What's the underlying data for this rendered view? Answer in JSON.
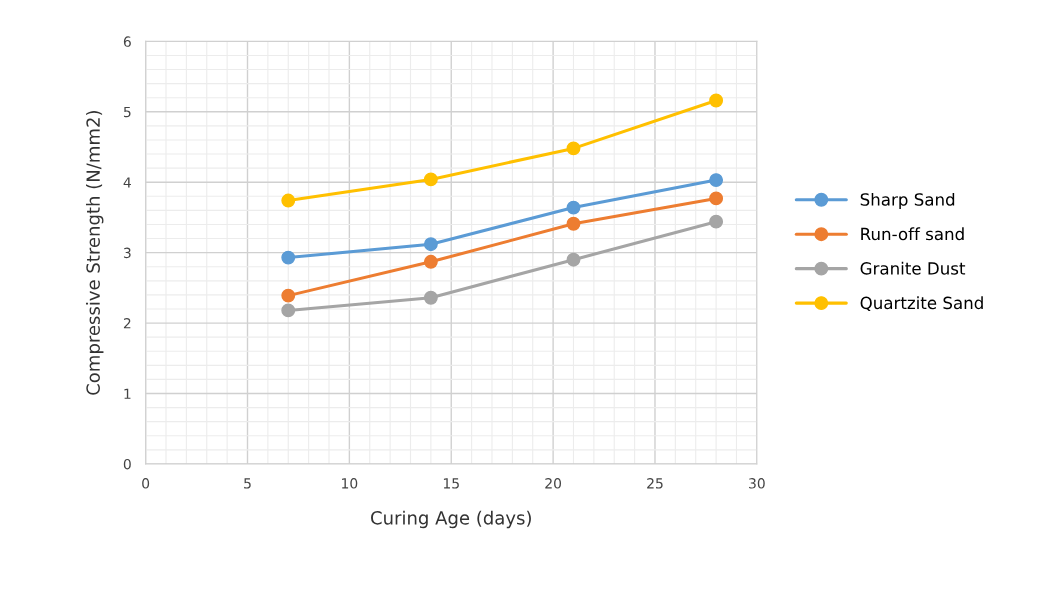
{
  "chart_data": {
    "type": "line",
    "xlabel": "Curing Age (days)",
    "ylabel": "Compressive Strength (N/mm2)",
    "x": [
      7,
      14,
      21,
      28
    ],
    "series": [
      {
        "name": "Sharp Sand",
        "color": "#5b9bd5",
        "values": [
          2.93,
          3.12,
          3.64,
          4.03
        ]
      },
      {
        "name": "Run-off sand",
        "color": "#ed7d31",
        "values": [
          2.39,
          2.87,
          3.41,
          3.77
        ]
      },
      {
        "name": "Granite Dust",
        "color": "#a5a5a5",
        "values": [
          2.18,
          2.36,
          2.9,
          3.44
        ]
      },
      {
        "name": "Quartzite Sand",
        "color": "#ffc000",
        "values": [
          3.74,
          4.04,
          4.48,
          5.16
        ]
      }
    ],
    "xlim": [
      0,
      30
    ],
    "xticks": [
      0,
      5,
      10,
      15,
      20,
      25,
      30
    ],
    "ylim": [
      0,
      6
    ],
    "yticks": [
      0,
      1,
      2,
      3,
      4,
      5,
      6
    ],
    "grid": true,
    "legend": "right",
    "marker": "circle",
    "line_style": "solid"
  }
}
